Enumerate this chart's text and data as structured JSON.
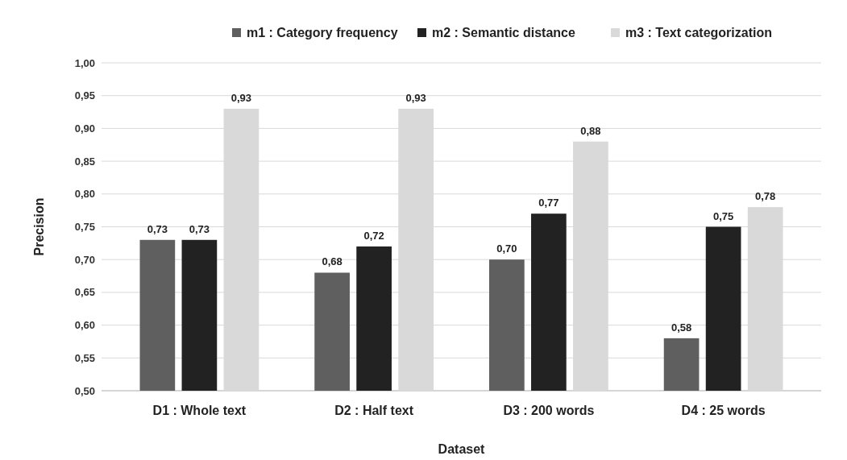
{
  "chart_data": {
    "type": "bar",
    "xlabel": "Dataset",
    "ylabel": "Precision",
    "categories": [
      "D1 : Whole text",
      "D2 : Half text",
      "D3 : 200 words",
      "D4 : 25 words"
    ],
    "series": [
      {
        "name": "m1 : Category frequency",
        "color": "#5f5f5f",
        "values": [
          0.73,
          0.68,
          0.7,
          0.58
        ],
        "value_labels": [
          "0,73",
          "0,68",
          "0,70",
          "0,58"
        ]
      },
      {
        "name": "m2 : Semantic distance",
        "color": "#222222",
        "values": [
          0.73,
          0.72,
          0.77,
          0.75
        ],
        "value_labels": [
          "0,73",
          "0,72",
          "0,77",
          "0,75"
        ]
      },
      {
        "name": "m3 : Text categorization",
        "color": "#d9d9d9",
        "values": [
          0.93,
          0.93,
          0.88,
          0.78
        ],
        "value_labels": [
          "0,93",
          "0,93",
          "0,88",
          "0,78"
        ]
      }
    ],
    "ylim": [
      0.5,
      1.0
    ],
    "yticks": [
      {
        "value": 0.5,
        "label": "0,50"
      },
      {
        "value": 0.55,
        "label": "0,55"
      },
      {
        "value": 0.6,
        "label": "0,60"
      },
      {
        "value": 0.65,
        "label": "0,65"
      },
      {
        "value": 0.7,
        "label": "0,70"
      },
      {
        "value": 0.75,
        "label": "0,75"
      },
      {
        "value": 0.8,
        "label": "0,80"
      },
      {
        "value": 0.85,
        "label": "0,85"
      },
      {
        "value": 0.9,
        "label": "0,90"
      },
      {
        "value": 0.95,
        "label": "0,95"
      },
      {
        "value": 1.0,
        "label": "1,00"
      }
    ],
    "grid": "y",
    "legend": "top"
  }
}
